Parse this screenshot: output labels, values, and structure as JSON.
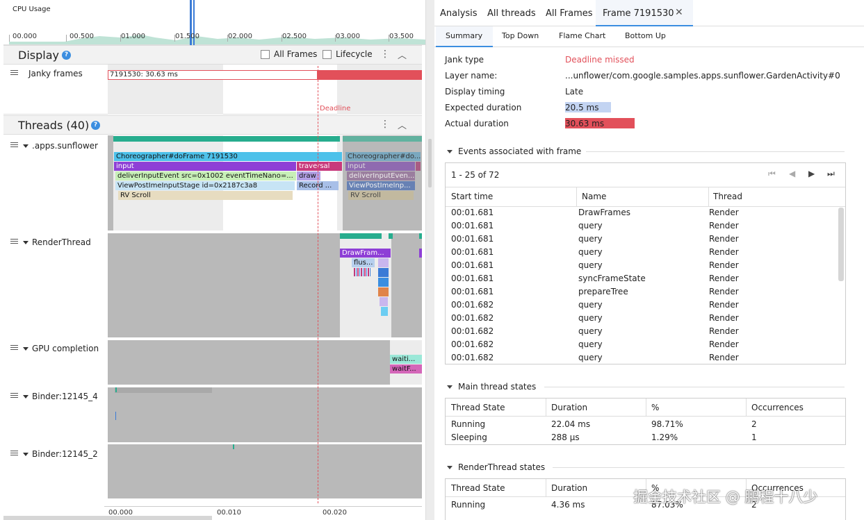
{
  "cpu": {
    "label": "CPU Usage",
    "ticks": [
      "00.000",
      "00.500",
      "01.000",
      "01.500",
      "02.000",
      "02.500",
      "03.000",
      "03.500"
    ]
  },
  "display": {
    "title": "Display",
    "all_frames": "All Frames",
    "lifecycle": "Lifecycle",
    "janky_label": "Janky frames",
    "janky_frame": "7191530: 30.63 ms",
    "deadline": "Deadline"
  },
  "threads": {
    "title": "Threads (40)",
    "rows": [
      {
        "label": ".apps.sunflower"
      },
      {
        "label": "RenderThread"
      },
      {
        "label": "GPU completion"
      },
      {
        "label": "Binder:12145_4"
      },
      {
        "label": "Binder:12145_2"
      }
    ],
    "main_slices": [
      "Choreographer#doFrame 7191530",
      "input",
      "traversal",
      "deliverInputEvent src=0x1002 eventTimeNano=...",
      "draw",
      "ViewPostImeInputStage id=0x2187c3a8",
      "Record ...",
      "RV Scroll"
    ],
    "ghost_slices": [
      "Choreographer#do...",
      "input",
      "deliverInputEven...",
      "ViewPostImeInp...",
      "RV Scroll"
    ],
    "render_slices": [
      "DrawFram...",
      "flus..."
    ],
    "gpu_slices": [
      "waiti...",
      "waitF..."
    ]
  },
  "bottom_ticks": [
    "00.000",
    "00.010",
    "00.020"
  ],
  "right": {
    "tabs": [
      "Analysis",
      "All threads",
      "All Frames",
      "Frame 7191530"
    ],
    "subtabs": [
      "Summary",
      "Top Down",
      "Flame Chart",
      "Bottom Up"
    ],
    "summary": [
      {
        "k": "Jank type",
        "v": "Deadline missed"
      },
      {
        "k": "Layer name:",
        "v": "...unflower/com.google.samples.apps.sunflower.GardenActivity#0"
      },
      {
        "k": "Display timing",
        "v": "Late"
      },
      {
        "k": "Expected duration",
        "v": "20.5 ms"
      },
      {
        "k": "Actual duration",
        "v": "30.63 ms"
      }
    ],
    "events_title": "Events associated with frame",
    "pager": "1 - 25 of 72",
    "events_cols": [
      "Start time",
      "Name",
      "Thread"
    ],
    "events": [
      [
        "00:01.681",
        "DrawFrames",
        "Render"
      ],
      [
        "00:01.681",
        "query",
        "Render"
      ],
      [
        "00:01.681",
        "query",
        "Render"
      ],
      [
        "00:01.681",
        "query",
        "Render"
      ],
      [
        "00:01.681",
        "query",
        "Render"
      ],
      [
        "00:01.681",
        "syncFrameState",
        "Render"
      ],
      [
        "00:01.681",
        "prepareTree",
        "Render"
      ],
      [
        "00:01.682",
        "query",
        "Render"
      ],
      [
        "00:01.682",
        "query",
        "Render"
      ],
      [
        "00:01.682",
        "query",
        "Render"
      ],
      [
        "00:01.682",
        "query",
        "Render"
      ],
      [
        "00:01.682",
        "query",
        "Render"
      ]
    ],
    "main_states_title": "Main thread states",
    "states_cols": [
      "Thread State",
      "Duration",
      "%",
      "Occurrences"
    ],
    "main_states": [
      [
        "Running",
        "22.04 ms",
        "98.71%",
        "2"
      ],
      [
        "Sleeping",
        "288 µs",
        "1.29%",
        "1"
      ]
    ],
    "render_states_title": "RenderThread states",
    "render_states": [
      [
        "Running",
        "4.36 ms",
        "87.03%",
        "2"
      ]
    ],
    "watermark": "掘金技术社区 @ 鹏程十八少"
  },
  "colors": {
    "jank_red": "#e2505a",
    "expected_blue": "#c3d4f2",
    "accent": "#3b8ee0"
  }
}
